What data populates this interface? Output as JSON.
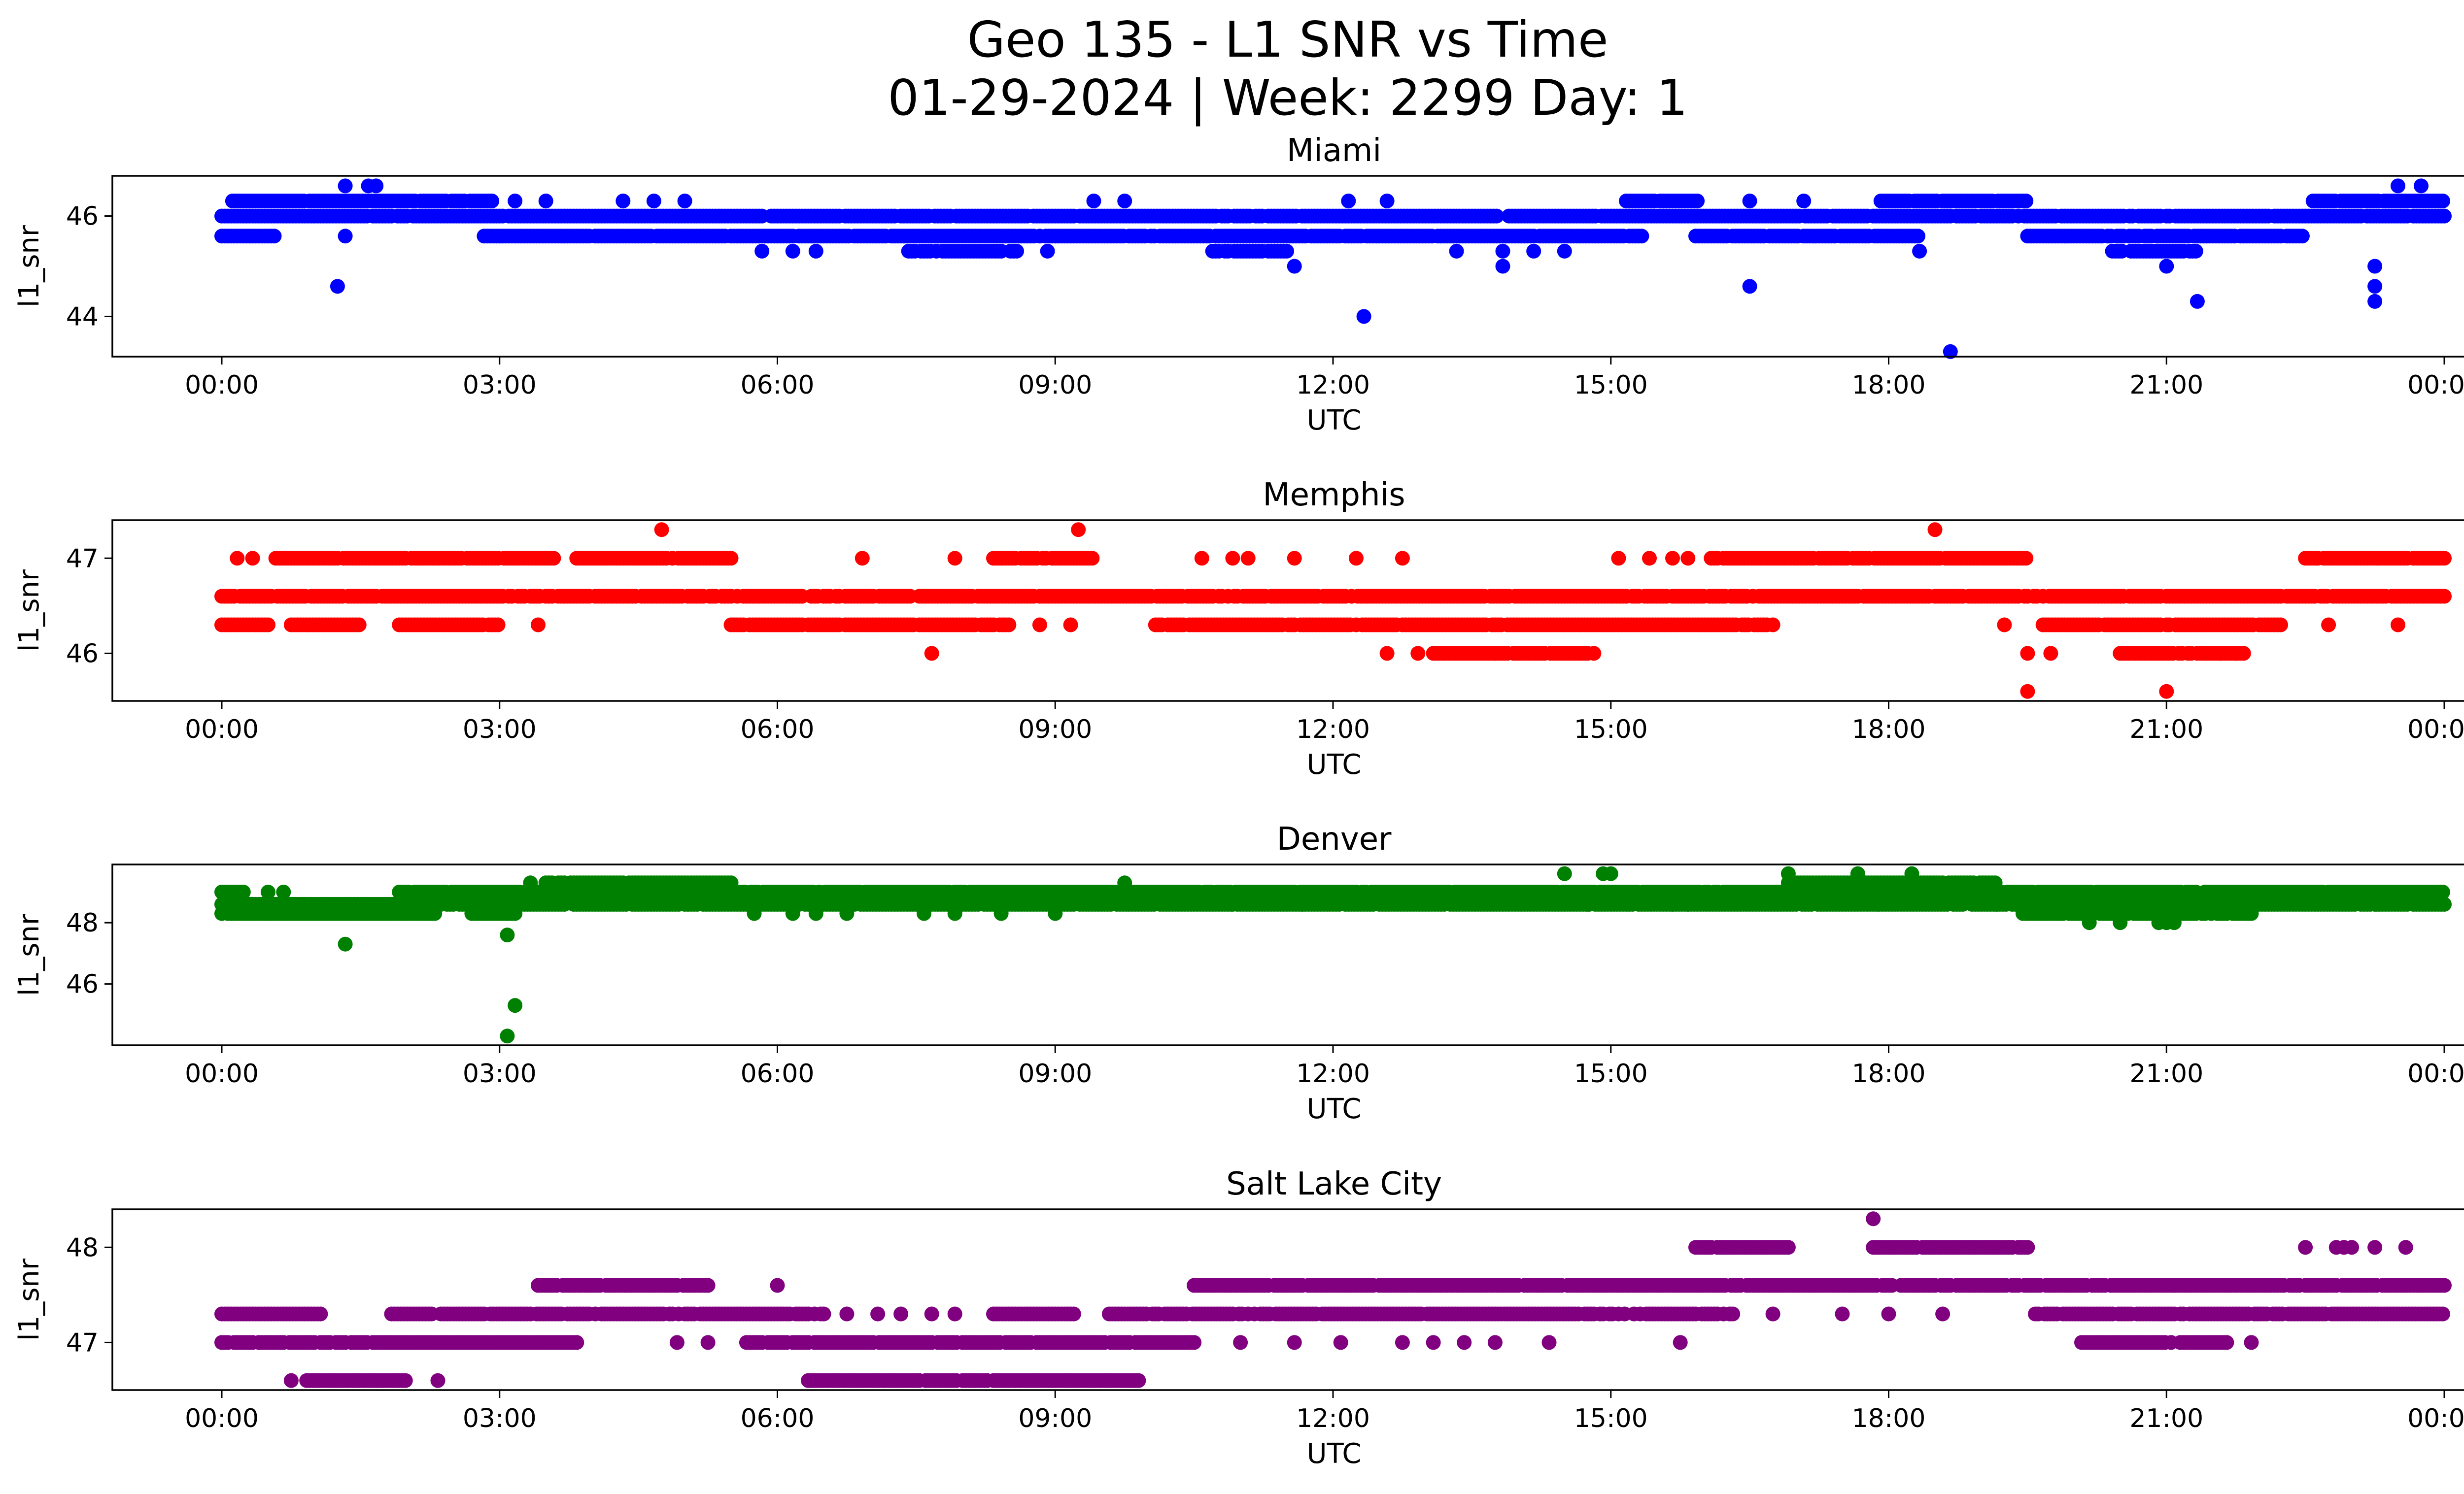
{
  "figure": {
    "title_line1": "Geo 135 - L1 SNR vs Time",
    "title_line2": "01-29-2024 | Week: 2299 Day: 1"
  },
  "chart_data": [
    {
      "type": "scatter",
      "title": "Miami",
      "xlabel": "UTC",
      "ylabel": "l1_snr",
      "color": "#0000ff",
      "xlim": [
        "2024-01-28 22:50",
        "2024-01-30 01:15"
      ],
      "ylim": [
        43.2,
        46.8
      ],
      "yticks": [
        44,
        46
      ],
      "xticks": [
        "00:00",
        "03:00",
        "06:00",
        "09:00",
        "12:00",
        "15:00",
        "18:00",
        "21:00",
        "00:00"
      ],
      "bands": [
        {
          "y": 46.3,
          "segments": [
            [
              "00:05",
              "02:55"
            ],
            [
              "15:10",
              "16:00"
            ],
            [
              "17:55",
              "19:30"
            ],
            [
              "22:35",
              "24:00"
            ]
          ]
        },
        {
          "y": 46.0,
          "segments": [
            [
              "00:00",
              "24:00"
            ]
          ]
        },
        {
          "y": 45.6,
          "segments": [
            [
              "00:00",
              "00:35"
            ],
            [
              "02:50",
              "15:20"
            ],
            [
              "15:55",
              "18:20"
            ],
            [
              "19:30",
              "22:30"
            ]
          ]
        },
        {
          "y": 45.3,
          "segments": [
            [
              "07:25",
              "08:35"
            ],
            [
              "10:40",
              "11:30"
            ],
            [
              "20:25",
              "21:20"
            ]
          ]
        }
      ],
      "outliers": [
        [
          "01:20",
          46.6
        ],
        [
          "01:35",
          46.6
        ],
        [
          "01:40",
          46.6
        ],
        [
          "01:20",
          45.6
        ],
        [
          "01:15",
          44.6
        ],
        [
          "03:10",
          46.3
        ],
        [
          "03:30",
          46.3
        ],
        [
          "04:20",
          46.3
        ],
        [
          "04:40",
          46.3
        ],
        [
          "05:00",
          46.3
        ],
        [
          "05:50",
          45.3
        ],
        [
          "06:10",
          45.3
        ],
        [
          "06:25",
          45.3
        ],
        [
          "08:55",
          45.3
        ],
        [
          "09:25",
          46.3
        ],
        [
          "09:45",
          46.3
        ],
        [
          "12:10",
          46.3
        ],
        [
          "12:35",
          46.3
        ],
        [
          "12:20",
          44.0
        ],
        [
          "11:35",
          45.0
        ],
        [
          "13:20",
          45.3
        ],
        [
          "13:50",
          45.0
        ],
        [
          "13:50",
          45.3
        ],
        [
          "14:10",
          45.3
        ],
        [
          "14:30",
          45.3
        ],
        [
          "16:30",
          46.3
        ],
        [
          "16:30",
          44.6
        ],
        [
          "17:05",
          46.3
        ],
        [
          "18:40",
          43.3
        ],
        [
          "18:20",
          45.3
        ],
        [
          "21:00",
          45.0
        ],
        [
          "21:20",
          44.3
        ],
        [
          "23:15",
          45.0
        ],
        [
          "23:15",
          44.6
        ],
        [
          "23:15",
          44.3
        ],
        [
          "23:30",
          46.6
        ],
        [
          "23:45",
          46.6
        ]
      ]
    },
    {
      "type": "scatter",
      "title": "Memphis",
      "xlabel": "UTC",
      "ylabel": "l1_snr",
      "color": "#ff0000",
      "xlim": [
        "2024-01-28 22:50",
        "2024-01-30 01:15"
      ],
      "ylim": [
        45.5,
        47.4
      ],
      "yticks": [
        46,
        47
      ],
      "xticks": [
        "00:00",
        "03:00",
        "06:00",
        "09:00",
        "12:00",
        "15:00",
        "18:00",
        "21:00",
        "00:00"
      ],
      "bands": [
        {
          "y": 47.0,
          "segments": [
            [
              "00:35",
              "03:35"
            ],
            [
              "03:50",
              "05:30"
            ],
            [
              "08:20",
              "09:25"
            ],
            [
              "16:05",
              "19:30"
            ],
            [
              "22:30",
              "24:00"
            ]
          ]
        },
        {
          "y": 46.6,
          "segments": [
            [
              "00:00",
              "24:00"
            ]
          ]
        },
        {
          "y": 46.3,
          "segments": [
            [
              "00:00",
              "00:30"
            ],
            [
              "00:45",
              "01:30"
            ],
            [
              "01:55",
              "03:00"
            ],
            [
              "05:30",
              "08:30"
            ],
            [
              "10:05",
              "16:45"
            ],
            [
              "19:40",
              "22:15"
            ]
          ]
        },
        {
          "y": 46.0,
          "segments": [
            [
              "13:05",
              "13:45"
            ],
            [
              "13:45",
              "14:50"
            ],
            [
              "20:30",
              "21:50"
            ]
          ]
        }
      ],
      "outliers": [
        [
          "00:10",
          47.0
        ],
        [
          "00:20",
          47.0
        ],
        [
          "04:45",
          47.3
        ],
        [
          "06:55",
          47.0
        ],
        [
          "07:55",
          47.0
        ],
        [
          "09:15",
          47.3
        ],
        [
          "10:35",
          47.0
        ],
        [
          "10:55",
          47.0
        ],
        [
          "11:05",
          47.0
        ],
        [
          "11:35",
          47.0
        ],
        [
          "12:15",
          47.0
        ],
        [
          "12:45",
          47.0
        ],
        [
          "15:05",
          47.0
        ],
        [
          "15:25",
          47.0
        ],
        [
          "15:40",
          47.0
        ],
        [
          "15:50",
          47.0
        ],
        [
          "18:30",
          47.3
        ],
        [
          "07:40",
          46.0
        ],
        [
          "12:35",
          46.0
        ],
        [
          "12:55",
          46.0
        ],
        [
          "19:30",
          46.0
        ],
        [
          "19:30",
          45.6
        ],
        [
          "19:45",
          46.0
        ],
        [
          "21:00",
          45.6
        ],
        [
          "21:35",
          46.0
        ],
        [
          "21:45",
          46.0
        ],
        [
          "22:45",
          46.3
        ],
        [
          "23:30",
          46.3
        ],
        [
          "03:25",
          46.3
        ],
        [
          "09:10",
          46.3
        ],
        [
          "08:50",
          46.3
        ],
        [
          "19:15",
          46.3
        ]
      ]
    },
    {
      "type": "scatter",
      "title": "Denver",
      "xlabel": "UTC",
      "ylabel": "l1_snr",
      "color": "#008000",
      "xlim": [
        "2024-01-28 22:50",
        "2024-01-30 01:15"
      ],
      "ylim": [
        44.0,
        49.9
      ],
      "yticks": [
        46,
        48
      ],
      "xticks": [
        "00:00",
        "03:00",
        "06:00",
        "09:00",
        "12:00",
        "15:00",
        "18:00",
        "21:00",
        "00:00"
      ],
      "bands": [
        {
          "y": 49.3,
          "segments": [
            [
              "03:30",
              "05:30"
            ],
            [
              "16:55",
              "19:10"
            ]
          ]
        },
        {
          "y": 49.0,
          "segments": [
            [
              "00:00",
              "00:15"
            ],
            [
              "01:55",
              "24:00"
            ]
          ]
        },
        {
          "y": 48.6,
          "segments": [
            [
              "00:00",
              "24:00"
            ]
          ]
        },
        {
          "y": 48.3,
          "segments": [
            [
              "00:00",
              "02:20"
            ],
            [
              "02:40",
              "03:10"
            ],
            [
              "19:25",
              "21:55"
            ]
          ]
        }
      ],
      "outliers": [
        [
          "00:40",
          49.0
        ],
        [
          "00:30",
          49.0
        ],
        [
          "01:20",
          47.3
        ],
        [
          "03:05",
          47.6
        ],
        [
          "03:10",
          45.3
        ],
        [
          "03:05",
          44.3
        ],
        [
          "03:05",
          48.3
        ],
        [
          "03:20",
          49.3
        ],
        [
          "05:45",
          48.3
        ],
        [
          "06:10",
          48.3
        ],
        [
          "06:25",
          48.3
        ],
        [
          "06:45",
          48.3
        ],
        [
          "07:35",
          48.3
        ],
        [
          "07:55",
          48.3
        ],
        [
          "08:25",
          48.3
        ],
        [
          "09:00",
          48.3
        ],
        [
          "09:45",
          49.3
        ],
        [
          "10:55",
          48.6
        ],
        [
          "11:40",
          48.6
        ],
        [
          "14:30",
          49.6
        ],
        [
          "14:45",
          48.6
        ],
        [
          "14:55",
          49.6
        ],
        [
          "15:00",
          49.6
        ],
        [
          "15:40",
          48.6
        ],
        [
          "15:50",
          48.6
        ],
        [
          "16:55",
          49.6
        ],
        [
          "17:40",
          49.6
        ],
        [
          "18:15",
          49.6
        ],
        [
          "19:10",
          48.6
        ],
        [
          "20:10",
          48.0
        ],
        [
          "20:30",
          48.0
        ],
        [
          "20:55",
          48.0
        ],
        [
          "21:00",
          48.0
        ],
        [
          "21:05",
          48.0
        ],
        [
          "23:15",
          48.6
        ]
      ]
    },
    {
      "type": "scatter",
      "title": "Salt Lake City",
      "xlabel": "UTC",
      "ylabel": "l1_snr",
      "color": "#800080",
      "xlim": [
        "2024-01-28 22:50",
        "2024-01-30 01:15"
      ],
      "ylim": [
        46.5,
        48.4
      ],
      "yticks": [
        47,
        48
      ],
      "xticks": [
        "00:00",
        "03:00",
        "06:00",
        "09:00",
        "12:00",
        "15:00",
        "18:00",
        "21:00",
        "00:00"
      ],
      "bands": [
        {
          "y": 48.0,
          "segments": [
            [
              "15:55",
              "16:55"
            ],
            [
              "17:50",
              "19:30"
            ]
          ]
        },
        {
          "y": 47.6,
          "segments": [
            [
              "03:25",
              "05:15"
            ],
            [
              "10:30",
              "24:00"
            ]
          ]
        },
        {
          "y": 47.3,
          "segments": [
            [
              "00:00",
              "01:05"
            ],
            [
              "01:50",
              "06:30"
            ],
            [
              "08:20",
              "09:15"
            ],
            [
              "09:35",
              "15:10"
            ],
            [
              "15:15",
              "16:20"
            ],
            [
              "19:35",
              "24:00"
            ]
          ]
        },
        {
          "y": 47.0,
          "segments": [
            [
              "00:00",
              "03:50"
            ],
            [
              "05:40",
              "10:30"
            ],
            [
              "20:05",
              "21:40"
            ]
          ]
        },
        {
          "y": 46.6,
          "segments": [
            [
              "00:55",
              "02:00"
            ],
            [
              "06:20",
              "09:55"
            ]
          ]
        }
      ],
      "outliers": [
        [
          "00:45",
          46.6
        ],
        [
          "02:20",
          46.6
        ],
        [
          "06:00",
          47.6
        ],
        [
          "04:55",
          47.0
        ],
        [
          "05:15",
          47.0
        ],
        [
          "06:45",
          47.3
        ],
        [
          "07:05",
          47.3
        ],
        [
          "07:20",
          47.3
        ],
        [
          "07:40",
          47.3
        ],
        [
          "07:55",
          47.3
        ],
        [
          "11:00",
          47.0
        ],
        [
          "11:35",
          47.0
        ],
        [
          "12:05",
          47.0
        ],
        [
          "12:45",
          47.0
        ],
        [
          "13:05",
          47.0
        ],
        [
          "13:25",
          47.0
        ],
        [
          "13:45",
          47.0
        ],
        [
          "14:20",
          47.0
        ],
        [
          "15:45",
          47.0
        ],
        [
          "16:45",
          47.3
        ],
        [
          "17:30",
          47.3
        ],
        [
          "17:50",
          48.3
        ],
        [
          "18:00",
          47.3
        ],
        [
          "18:35",
          47.3
        ],
        [
          "21:05",
          47.6
        ],
        [
          "21:55",
          47.0
        ],
        [
          "22:30",
          48.0
        ],
        [
          "22:50",
          48.0
        ],
        [
          "22:55",
          48.0
        ],
        [
          "23:00",
          48.0
        ],
        [
          "23:15",
          48.0
        ],
        [
          "23:35",
          48.0
        ]
      ]
    }
  ]
}
